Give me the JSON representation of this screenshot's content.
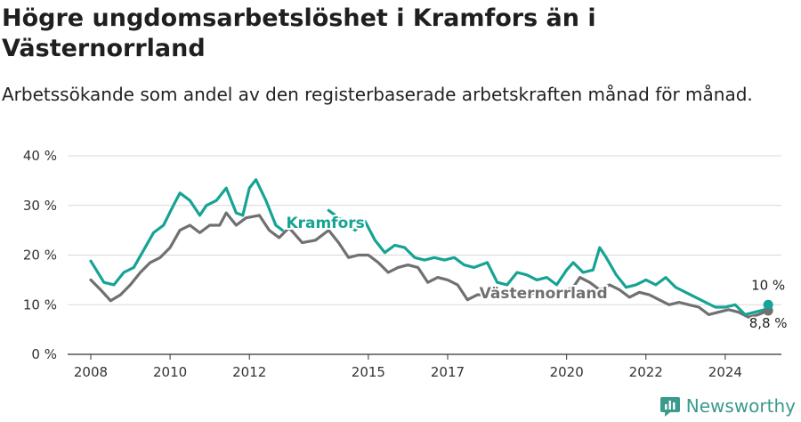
{
  "title": "Högre ungdomsarbetslöshet i Kramfors än i Västernorrland",
  "subtitle": "Arbetssökande som andel av den registerbaserade arbetskraften månad för månad.",
  "brand": {
    "name": "Newsworthy"
  },
  "colors": {
    "kramfors": "#16a394",
    "vasternorrland": "#707070",
    "grid": "#d9d9d9"
  },
  "chart_data": {
    "type": "line",
    "title": "Högre ungdomsarbetslöshet i Kramfors än i Västernorrland",
    "xlabel": "",
    "ylabel": "",
    "ylim": [
      0,
      40
    ],
    "yticks": [
      0,
      10,
      20,
      30,
      40
    ],
    "ytick_labels": [
      "0 %",
      "10 %",
      "20 %",
      "30 %",
      "40 %"
    ],
    "xlim": [
      "2007-06",
      "2025-06"
    ],
    "xticks": [
      "2008-01",
      "2010-01",
      "2012-01",
      "2015-01",
      "2017-01",
      "2020-01",
      "2022-01",
      "2024-01"
    ],
    "xtick_labels": [
      "2008",
      "2010",
      "2012",
      "2015",
      "2017",
      "2020",
      "2022",
      "2024"
    ],
    "grid": true,
    "series": [
      {
        "name": "Kramfors",
        "color": "#16a394",
        "label_position": "inline",
        "end_label": "10 %",
        "points": [
          [
            "2008-01",
            18.8
          ],
          [
            "2008-05",
            14.5
          ],
          [
            "2008-08",
            14.0
          ],
          [
            "2008-11",
            16.5
          ],
          [
            "2009-02",
            17.5
          ],
          [
            "2009-05",
            21.0
          ],
          [
            "2009-08",
            24.5
          ],
          [
            "2009-11",
            26.0
          ],
          [
            "2010-02",
            30.0
          ],
          [
            "2010-04",
            32.5
          ],
          [
            "2010-07",
            31.0
          ],
          [
            "2010-10",
            28.0
          ],
          [
            "2010-12",
            30.0
          ],
          [
            "2011-03",
            31.0
          ],
          [
            "2011-06",
            33.5
          ],
          [
            "2011-09",
            28.5
          ],
          [
            "2011-11",
            28.0
          ],
          [
            "2012-01",
            33.5
          ],
          [
            "2012-03",
            35.2
          ],
          [
            "2012-06",
            31.0
          ],
          [
            "2012-09",
            26.0
          ],
          [
            "2012-11",
            25.0
          ]
        ]
      },
      {
        "name": "Kramfors (2013–2025)",
        "color": "#16a394",
        "points": [
          [
            "2014-01",
            29.0
          ],
          [
            "2014-05",
            27.0
          ],
          [
            "2014-09",
            25.0
          ],
          [
            "2014-12",
            26.8
          ],
          [
            "2015-03",
            23.0
          ],
          [
            "2015-06",
            20.5
          ],
          [
            "2015-09",
            22.0
          ],
          [
            "2015-12",
            21.5
          ],
          [
            "2016-03",
            19.5
          ],
          [
            "2016-06",
            19.0
          ],
          [
            "2016-09",
            19.5
          ],
          [
            "2016-12",
            19.0
          ],
          [
            "2017-03",
            19.5
          ],
          [
            "2017-06",
            18.0
          ],
          [
            "2017-09",
            17.5
          ],
          [
            "2018-01",
            18.5
          ],
          [
            "2018-04",
            14.5
          ],
          [
            "2018-07",
            14.0
          ],
          [
            "2018-10",
            16.5
          ],
          [
            "2019-01",
            16.0
          ],
          [
            "2019-04",
            15.0
          ],
          [
            "2019-07",
            15.5
          ],
          [
            "2019-10",
            14.0
          ],
          [
            "2020-01",
            17.0
          ],
          [
            "2020-03",
            18.5
          ],
          [
            "2020-06",
            16.5
          ],
          [
            "2020-09",
            17.0
          ],
          [
            "2020-11",
            21.5
          ],
          [
            "2021-01",
            19.5
          ],
          [
            "2021-04",
            16.0
          ],
          [
            "2021-07",
            13.5
          ],
          [
            "2021-10",
            14.0
          ],
          [
            "2022-01",
            15.0
          ],
          [
            "2022-04",
            14.0
          ],
          [
            "2022-07",
            15.5
          ],
          [
            "2022-10",
            13.5
          ],
          [
            "2023-01",
            12.5
          ],
          [
            "2023-04",
            11.5
          ],
          [
            "2023-07",
            10.5
          ],
          [
            "2023-10",
            9.5
          ],
          [
            "2024-01",
            9.5
          ],
          [
            "2024-04",
            10.0
          ],
          [
            "2024-07",
            8.0
          ],
          [
            "2024-10",
            8.5
          ],
          [
            "2025-01",
            9.0
          ],
          [
            "2025-02",
            10.0
          ]
        ]
      },
      {
        "name": "Västernorrland",
        "color": "#707070",
        "label_position": "inline",
        "end_label": "8,8 %",
        "points": [
          [
            "2008-01",
            15.0
          ],
          [
            "2008-04",
            13.0
          ],
          [
            "2008-07",
            10.8
          ],
          [
            "2008-10",
            12.0
          ],
          [
            "2009-01",
            14.0
          ],
          [
            "2009-04",
            16.5
          ],
          [
            "2009-07",
            18.5
          ],
          [
            "2009-10",
            19.5
          ],
          [
            "2010-01",
            21.5
          ],
          [
            "2010-04",
            25.0
          ],
          [
            "2010-07",
            26.0
          ],
          [
            "2010-10",
            24.5
          ],
          [
            "2011-01",
            26.0
          ],
          [
            "2011-04",
            26.0
          ],
          [
            "2011-06",
            28.5
          ],
          [
            "2011-09",
            26.0
          ],
          [
            "2011-12",
            27.5
          ],
          [
            "2012-04",
            28.0
          ],
          [
            "2012-07",
            25.0
          ],
          [
            "2012-10",
            23.5
          ],
          [
            "2013-01",
            25.5
          ],
          [
            "2013-05",
            22.5
          ],
          [
            "2013-09",
            23.0
          ],
          [
            "2014-01",
            25.0
          ],
          [
            "2014-04",
            22.5
          ],
          [
            "2014-07",
            19.5
          ],
          [
            "2014-10",
            20.0
          ],
          [
            "2015-01",
            20.0
          ],
          [
            "2015-04",
            18.5
          ],
          [
            "2015-07",
            16.5
          ],
          [
            "2015-10",
            17.5
          ],
          [
            "2016-01",
            18.0
          ],
          [
            "2016-04",
            17.5
          ],
          [
            "2016-07",
            14.5
          ],
          [
            "2016-10",
            15.5
          ],
          [
            "2017-01",
            15.0
          ],
          [
            "2017-04",
            14.0
          ],
          [
            "2017-07",
            11.0
          ],
          [
            "2017-10",
            12.0
          ],
          [
            "2018-01",
            12.0
          ],
          [
            "2018-04",
            12.0
          ],
          [
            "2018-07",
            12.0
          ],
          [
            "2018-10",
            12.0
          ],
          [
            "2019-01",
            12.0
          ],
          [
            "2019-04",
            12.5
          ],
          [
            "2019-07",
            12.5
          ],
          [
            "2019-10",
            12.5
          ],
          [
            "2020-01",
            13.0
          ],
          [
            "2020-03",
            13.5
          ],
          [
            "2020-05",
            15.5
          ],
          [
            "2020-08",
            14.5
          ],
          [
            "2020-11",
            13.0
          ],
          [
            "2021-02",
            14.0
          ],
          [
            "2021-05",
            13.0
          ],
          [
            "2021-08",
            11.5
          ],
          [
            "2021-11",
            12.5
          ],
          [
            "2022-02",
            12.0
          ],
          [
            "2022-05",
            11.0
          ],
          [
            "2022-08",
            10.0
          ],
          [
            "2022-11",
            10.5
          ],
          [
            "2023-02",
            10.0
          ],
          [
            "2023-05",
            9.5
          ],
          [
            "2023-08",
            8.0
          ],
          [
            "2023-11",
            8.5
          ],
          [
            "2024-02",
            9.0
          ],
          [
            "2024-05",
            8.5
          ],
          [
            "2024-08",
            7.5
          ],
          [
            "2024-11",
            8.0
          ],
          [
            "2025-02",
            8.8
          ]
        ]
      }
    ],
    "series_labels": [
      {
        "text": "Kramfors",
        "color": "#16a394",
        "anchor": [
          "2013-12",
          25.5
        ]
      },
      {
        "text": "Västernorrland",
        "color": "#707070",
        "anchor": [
          "2019-06",
          11.3
        ]
      }
    ],
    "end_labels": [
      {
        "text": "10 %",
        "anchor": [
          "2025-02",
          13.0
        ]
      },
      {
        "text": "8,8 %",
        "anchor": [
          "2025-02",
          5.4
        ]
      }
    ]
  }
}
